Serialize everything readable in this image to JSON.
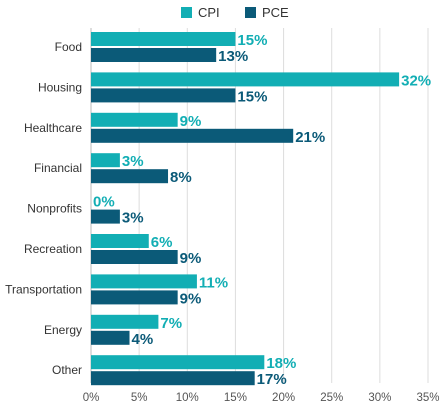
{
  "chart_data": {
    "type": "bar",
    "orientation": "horizontal",
    "categories": [
      "Food",
      "Housing",
      "Healthcare",
      "Financial",
      "Nonprofits",
      "Recreation",
      "Transportation",
      "Energy",
      "Other"
    ],
    "series": [
      {
        "name": "CPI",
        "values": [
          15,
          32,
          9,
          3,
          0,
          6,
          11,
          7,
          18
        ],
        "color": "#12aeb4",
        "labels": [
          "15%",
          "32%",
          "9%",
          "3%",
          "0%",
          "6%",
          "11%",
          "7%",
          "18%"
        ]
      },
      {
        "name": "PCE",
        "values": [
          13,
          15,
          21,
          8,
          3,
          9,
          9,
          4,
          17
        ],
        "color": "#0b5a78",
        "labels": [
          "13%",
          "15%",
          "21%",
          "8%",
          "3%",
          "9%",
          "9%",
          "4%",
          "17%"
        ]
      }
    ],
    "xlim": [
      0,
      35
    ],
    "xticks": [
      0,
      5,
      10,
      15,
      20,
      25,
      30,
      35
    ],
    "xtick_labels": [
      "0%",
      "5%",
      "10%",
      "15%",
      "20%",
      "25%",
      "30%",
      "35%"
    ],
    "grid": true,
    "legend": "top-center",
    "title": "",
    "xlabel": "",
    "ylabel": ""
  }
}
